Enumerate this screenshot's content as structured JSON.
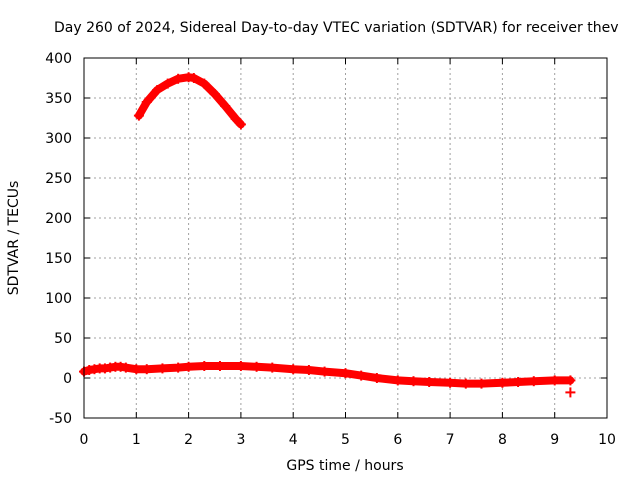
{
  "chart_data": {
    "type": "scatter",
    "title": "Day 260 of 2024, Sidereal Day-to-day VTEC variation (SDTVAR) for receiver thev",
    "xlabel": "GPS time / hours",
    "ylabel": "SDTVAR / TECUs",
    "xlim": [
      0,
      10
    ],
    "ylim": [
      -50,
      400
    ],
    "xticks": [
      "0",
      "1",
      "2",
      "3",
      "4",
      "5",
      "6",
      "7",
      "8",
      "9",
      "10"
    ],
    "yticks": [
      "-50",
      "0",
      "50",
      "100",
      "150",
      "200",
      "250",
      "300",
      "350",
      "400"
    ],
    "grid": true,
    "legend": "none",
    "marker": "plus",
    "color": "#ff0000",
    "series": [
      {
        "values_x": [
          1.05,
          1.2,
          1.4,
          1.6,
          1.8,
          2.0,
          2.1,
          2.3,
          2.5,
          2.7,
          2.9,
          3.0
        ],
        "values_y": [
          328,
          345,
          360,
          368,
          374,
          376,
          375,
          368,
          355,
          340,
          324,
          317
        ]
      },
      {
        "values_x": [
          0.0,
          0.1,
          0.2,
          0.3,
          0.4,
          0.5,
          0.6,
          0.7,
          0.8,
          1.0,
          1.2,
          1.5,
          1.8,
          2.0,
          2.3,
          2.6,
          3.0,
          3.3,
          3.6,
          4.0,
          4.3,
          4.6,
          5.0,
          5.3,
          5.6,
          6.0,
          6.3,
          6.6,
          7.0,
          7.3,
          7.6,
          8.0,
          8.3,
          8.6,
          9.0,
          9.3
        ],
        "values_y": [
          8,
          10,
          11,
          12,
          12,
          13,
          14,
          14,
          13,
          11,
          11,
          12,
          13,
          14,
          15,
          15,
          15,
          14,
          13,
          11,
          10,
          8,
          6,
          3,
          0,
          -3,
          -4,
          -5,
          -6,
          -7,
          -7,
          -6,
          -5,
          -4,
          -3,
          -3
        ]
      },
      {
        "values_x": [
          9.3
        ],
        "values_y": [
          -18
        ]
      }
    ]
  }
}
